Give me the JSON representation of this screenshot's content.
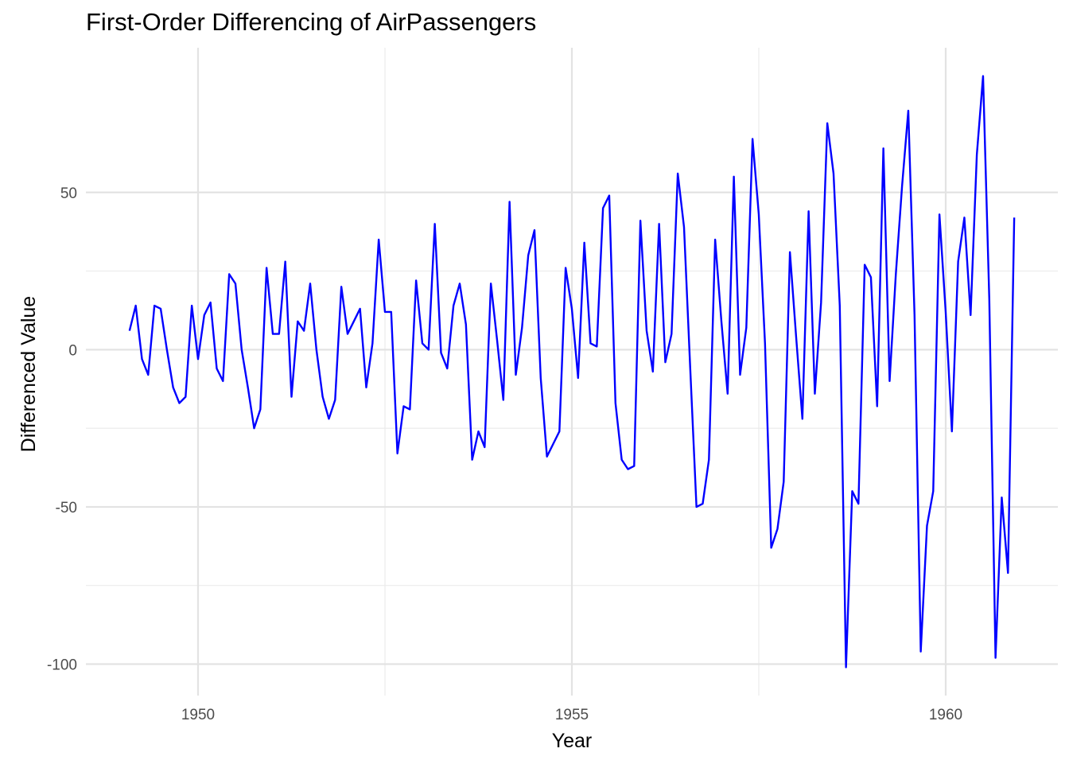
{
  "chart_data": {
    "type": "line",
    "title": "First-Order Differencing of AirPassengers",
    "xlabel": "Year",
    "ylabel": "Differenced Value",
    "xlim": [
      1948.5,
      1961.5
    ],
    "ylim": [
      -110,
      96
    ],
    "x_ticks": [
      1950,
      1955,
      1960
    ],
    "x_tick_labels": [
      "1950",
      "1955",
      "1960"
    ],
    "y_ticks": [
      -100,
      -50,
      0,
      50
    ],
    "y_tick_labels": [
      "-100",
      "-50",
      "0",
      "50"
    ],
    "grid": true,
    "legend": "none",
    "line_color": "#0000ff",
    "x_start": 1949.0833,
    "x_step": 0.08333,
    "values": [
      6,
      14,
      -3,
      -8,
      14,
      13,
      0,
      -12,
      -17,
      -15,
      14,
      -3,
      11,
      15,
      -6,
      -10,
      24,
      21,
      0,
      -12,
      -25,
      -19,
      26,
      5,
      5,
      28,
      -15,
      9,
      6,
      21,
      0,
      -15,
      -22,
      -16,
      20,
      5,
      9,
      13,
      -12,
      2,
      35,
      12,
      12,
      -33,
      -18,
      -19,
      22,
      2,
      0,
      40,
      -1,
      -6,
      14,
      21,
      8,
      -35,
      -26,
      -31,
      21,
      3,
      -16,
      47,
      -8,
      7,
      30,
      38,
      -9,
      -34,
      -30,
      -26,
      26,
      13,
      -9,
      34,
      2,
      1,
      45,
      49,
      -17,
      -35,
      -38,
      -37,
      41,
      6,
      -7,
      40,
      -4,
      5,
      56,
      39,
      -6,
      -50,
      -49,
      -35,
      35,
      9,
      -14,
      55,
      -8,
      7,
      67,
      43,
      2,
      -63,
      -57,
      -42,
      31,
      4,
      -22,
      44,
      -14,
      15,
      72,
      56,
      14,
      -101,
      -45,
      -49,
      27,
      23,
      -18,
      64,
      -10,
      24,
      52,
      76,
      11,
      -96,
      -56,
      -45,
      43,
      12,
      -26,
      28,
      42,
      11,
      62,
      87,
      16,
      -98,
      -47,
      -71,
      42
    ]
  }
}
